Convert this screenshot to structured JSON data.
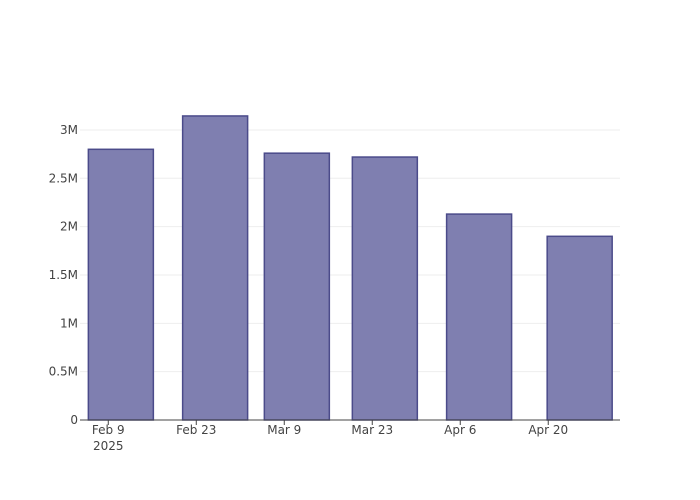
{
  "chart_data": {
    "type": "bar",
    "x": [
      "2025-02-11",
      "2025-02-26",
      "2025-03-11",
      "2025-03-25",
      "2025-04-09",
      "2025-04-25"
    ],
    "values": [
      2800000,
      3145000,
      2760000,
      2720000,
      2130000,
      1900000
    ],
    "color": "#7f7fb0",
    "edge_color": "#4b4b8a",
    "xlim": [
      "2025-02-04T12:00",
      "2025-05-01T10:00"
    ],
    "xticks": [
      {
        "value": "2025-02-09",
        "label": "Feb 9"
      },
      {
        "value": "2025-02-23",
        "label": "Feb 23"
      },
      {
        "value": "2025-03-09",
        "label": "Mar 9"
      },
      {
        "value": "2025-03-23",
        "label": "Mar 23"
      },
      {
        "value": "2025-04-06",
        "label": "Apr 6"
      },
      {
        "value": "2025-04-20",
        "label": "Apr 20"
      }
    ],
    "x_year_label": "2025",
    "ylim": [
      0,
      3310000
    ],
    "yticks": [
      {
        "value": 0,
        "label": "0"
      },
      {
        "value": 500000,
        "label": "0.5M"
      },
      {
        "value": 1000000,
        "label": "1M"
      },
      {
        "value": 1500000,
        "label": "1.5M"
      },
      {
        "value": 2000000,
        "label": "2M"
      },
      {
        "value": 2500000,
        "label": "2.5M"
      },
      {
        "value": 3000000,
        "label": "3M"
      }
    ],
    "grid": true
  }
}
